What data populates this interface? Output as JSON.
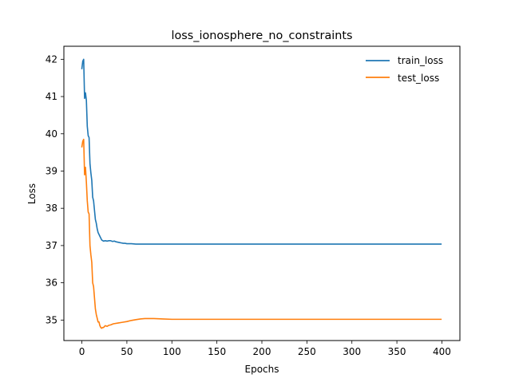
{
  "chart_data": {
    "type": "line",
    "title": "loss_ionosphere_no_constraints",
    "xlabel": "Epochs",
    "ylabel": "Loss",
    "xlim": [
      -20,
      420
    ],
    "ylim": [
      34.45,
      42.35
    ],
    "xticks": [
      0,
      50,
      100,
      150,
      200,
      250,
      300,
      350,
      400
    ],
    "yticks": [
      35,
      36,
      37,
      38,
      39,
      40,
      41,
      42
    ],
    "grid": false,
    "legend_position": "top-right",
    "series": [
      {
        "name": "train_loss",
        "color": "#1f77b4",
        "x": [
          0,
          1,
          2,
          3,
          4,
          5,
          6,
          7,
          8,
          9,
          10,
          11,
          12,
          13,
          14,
          15,
          16,
          17,
          18,
          19,
          20,
          22,
          24,
          26,
          28,
          30,
          32,
          34,
          36,
          38,
          40,
          42,
          44,
          46,
          48,
          50,
          55,
          60,
          70,
          80,
          100,
          150,
          200,
          250,
          300,
          350,
          399
        ],
        "y": [
          41.75,
          41.95,
          42.0,
          40.95,
          41.1,
          40.9,
          40.2,
          39.95,
          39.9,
          39.2,
          38.95,
          38.75,
          38.3,
          38.2,
          37.95,
          37.7,
          37.6,
          37.45,
          37.35,
          37.3,
          37.25,
          37.15,
          37.12,
          37.13,
          37.12,
          37.13,
          37.13,
          37.11,
          37.12,
          37.1,
          37.09,
          37.08,
          37.07,
          37.06,
          37.06,
          37.05,
          37.05,
          37.04,
          37.04,
          37.04,
          37.04,
          37.04,
          37.04,
          37.04,
          37.04,
          37.04,
          37.04
        ]
      },
      {
        "name": "test_loss",
        "color": "#ff7f0e",
        "x": [
          0,
          1,
          2,
          3,
          4,
          5,
          6,
          7,
          8,
          9,
          10,
          11,
          12,
          13,
          14,
          15,
          16,
          17,
          18,
          19,
          20,
          21,
          22,
          23,
          24,
          26,
          28,
          30,
          32,
          35,
          40,
          45,
          50,
          55,
          60,
          65,
          70,
          75,
          80,
          90,
          100,
          110,
          150,
          200,
          250,
          300,
          350,
          399
        ],
        "y": [
          39.65,
          39.8,
          39.85,
          38.9,
          39.1,
          38.7,
          38.2,
          37.9,
          37.85,
          37.0,
          36.75,
          36.55,
          36.0,
          35.9,
          35.6,
          35.3,
          35.15,
          35.05,
          34.95,
          34.95,
          34.85,
          34.8,
          34.78,
          34.8,
          34.8,
          34.85,
          34.83,
          34.86,
          34.87,
          34.9,
          34.92,
          34.94,
          34.96,
          34.99,
          35.01,
          35.03,
          35.04,
          35.04,
          35.04,
          35.03,
          35.02,
          35.02,
          35.02,
          35.02,
          35.02,
          35.02,
          35.02,
          35.02
        ]
      }
    ]
  }
}
